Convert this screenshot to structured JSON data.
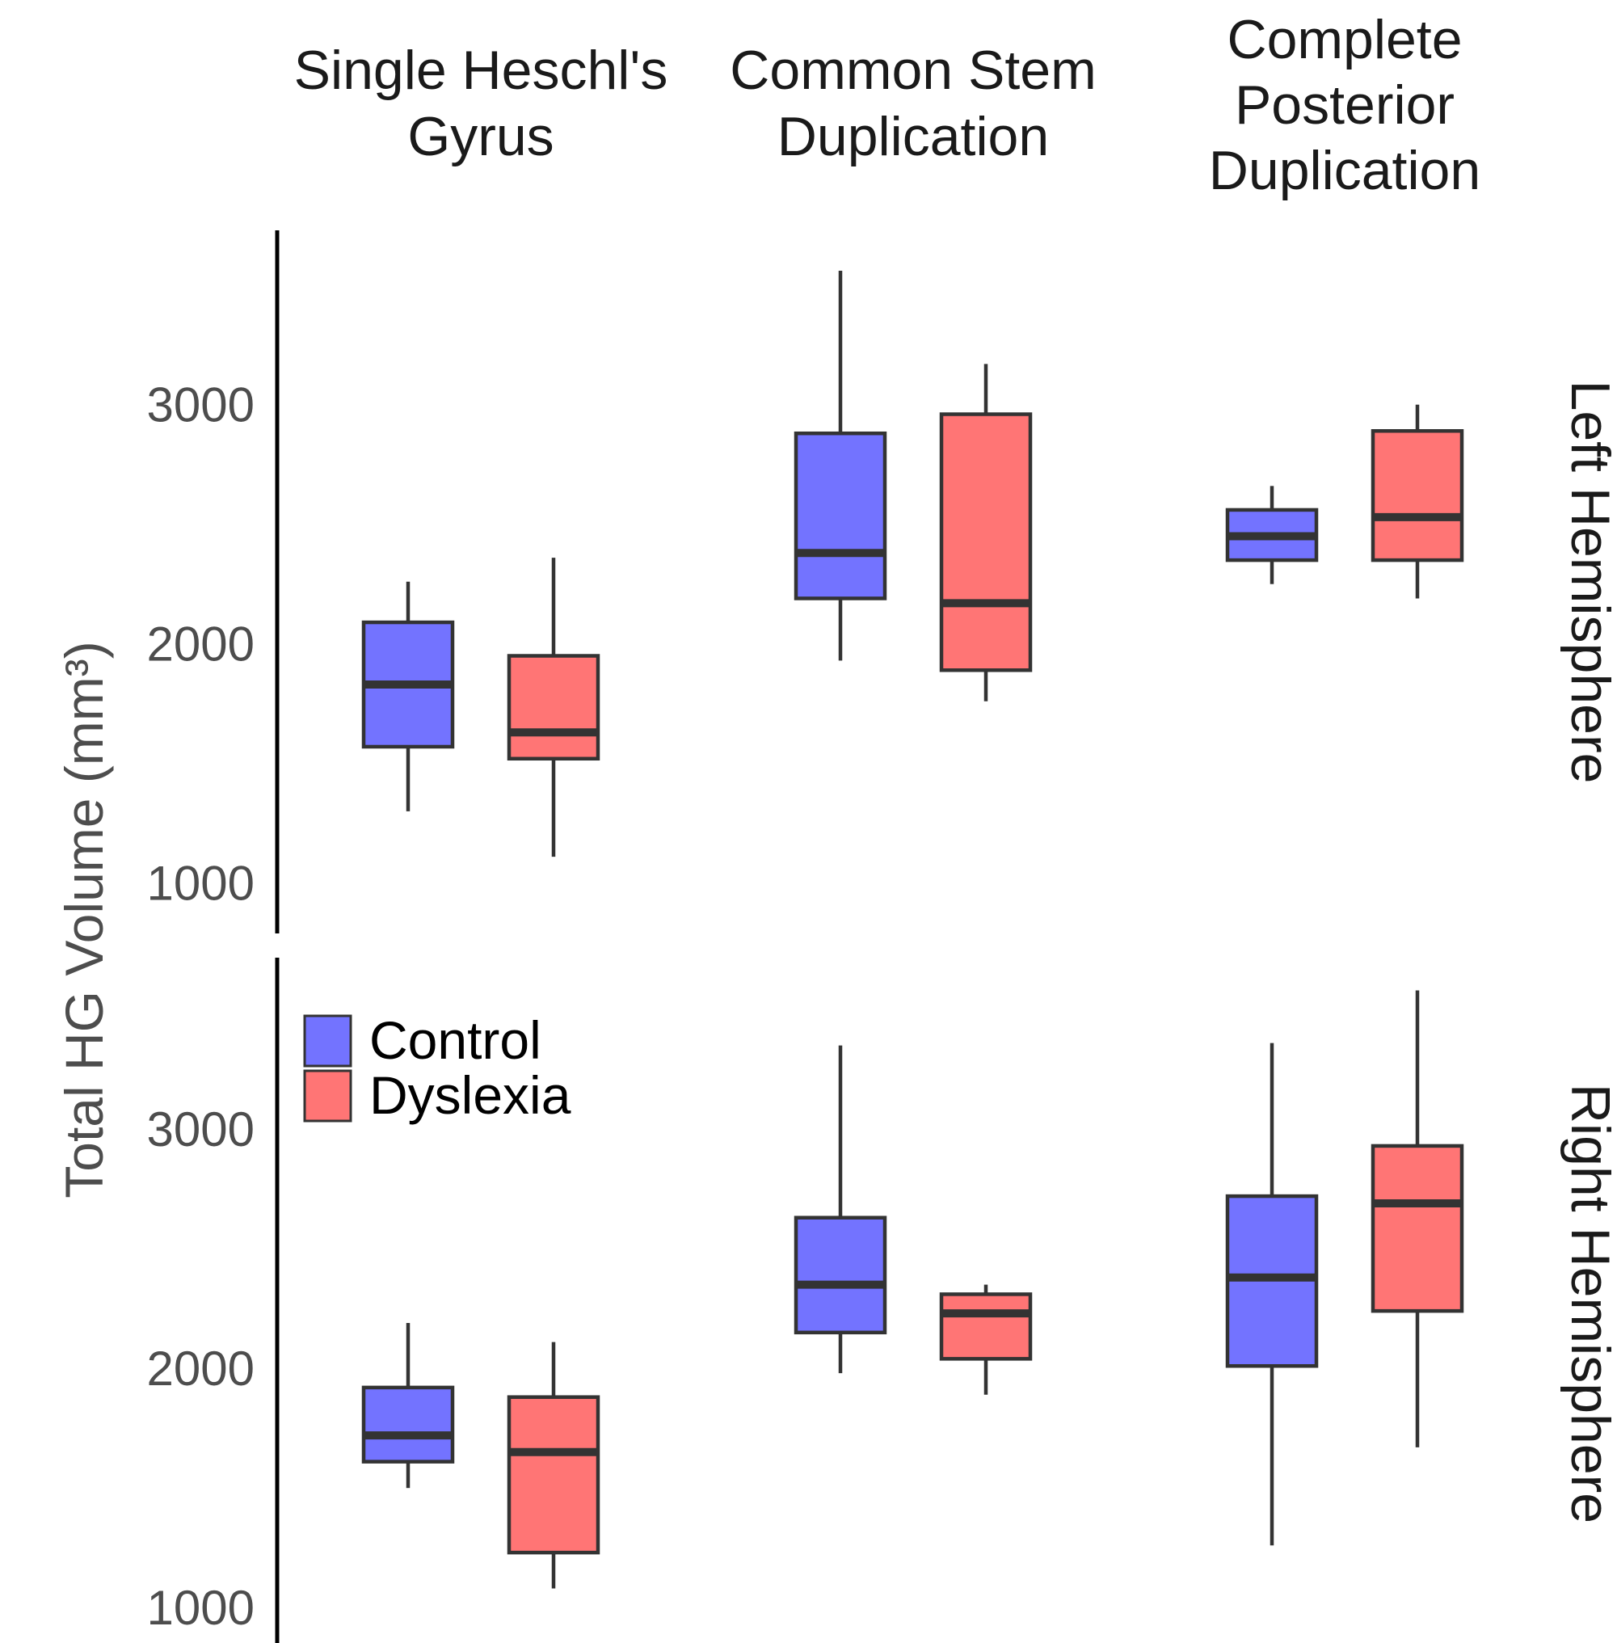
{
  "chart_data": {
    "type": "box",
    "facet_columns": [
      "Single Heschl's\nGyrus",
      "Common Stem\nDuplication",
      "Complete\nPosterior\nDuplication"
    ],
    "facet_rows": [
      "Left Hemisphere",
      "Right Hemisphere"
    ],
    "ylabel": "Total HG Volume (mm³)",
    "yticks": [
      1000,
      2000,
      3000
    ],
    "ylim": [
      800,
      3700
    ],
    "legend": {
      "placement": "top-left of lower panel",
      "entries": [
        {
          "name": "Control",
          "color": "#7373FF"
        },
        {
          "name": "Dyslexia",
          "color": "#FF7575"
        }
      ]
    },
    "series_colors": {
      "Control": "#7373FF",
      "Dyslexia": "#FF7575"
    },
    "panels": [
      {
        "row": "Left Hemisphere",
        "boxes": [
          {
            "column": 0,
            "group": "Control",
            "lower_whisker": 1300,
            "q1": 1570,
            "median": 1830,
            "q3": 2090,
            "upper_whisker": 2260
          },
          {
            "column": 0,
            "group": "Dyslexia",
            "lower_whisker": 1110,
            "q1": 1520,
            "median": 1630,
            "q3": 1950,
            "upper_whisker": 2360
          },
          {
            "column": 1,
            "group": "Control",
            "lower_whisker": 1930,
            "q1": 2190,
            "median": 2380,
            "q3": 2880,
            "upper_whisker": 3560
          },
          {
            "column": 1,
            "group": "Dyslexia",
            "lower_whisker": 1760,
            "q1": 1890,
            "median": 2170,
            "q3": 2960,
            "upper_whisker": 3170
          },
          {
            "column": 2,
            "group": "Control",
            "lower_whisker": 2250,
            "q1": 2350,
            "median": 2450,
            "q3": 2560,
            "upper_whisker": 2660
          },
          {
            "column": 2,
            "group": "Dyslexia",
            "lower_whisker": 2190,
            "q1": 2350,
            "median": 2530,
            "q3": 2890,
            "upper_whisker": 3000
          }
        ]
      },
      {
        "row": "Right Hemisphere",
        "boxes": [
          {
            "column": 0,
            "group": "Control",
            "lower_whisker": 1500,
            "q1": 1610,
            "median": 1720,
            "q3": 1920,
            "upper_whisker": 2190
          },
          {
            "column": 0,
            "group": "Dyslexia",
            "lower_whisker": 1080,
            "q1": 1230,
            "median": 1650,
            "q3": 1880,
            "upper_whisker": 2110
          },
          {
            "column": 1,
            "group": "Control",
            "lower_whisker": 1980,
            "q1": 2150,
            "median": 2350,
            "q3": 2630,
            "upper_whisker": 3350
          },
          {
            "column": 1,
            "group": "Dyslexia",
            "lower_whisker": 1890,
            "q1": 2040,
            "median": 2230,
            "q3": 2310,
            "upper_whisker": 2350
          },
          {
            "column": 2,
            "group": "Control",
            "lower_whisker": 1260,
            "q1": 2010,
            "median": 2380,
            "q3": 2720,
            "upper_whisker": 3360
          },
          {
            "column": 2,
            "group": "Dyslexia",
            "lower_whisker": 1670,
            "q1": 2240,
            "median": 2690,
            "q3": 2930,
            "upper_whisker": 3580
          }
        ]
      }
    ]
  }
}
